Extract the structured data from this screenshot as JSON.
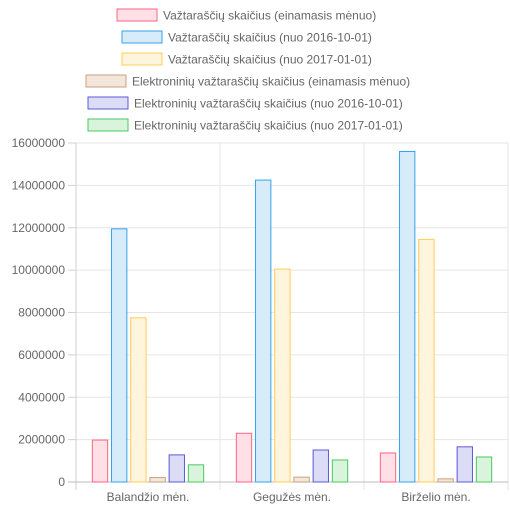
{
  "chart_data": {
    "type": "bar",
    "categories": [
      "Balandžio mėn.",
      "Gegužės mėn.",
      "Birželio mėn."
    ],
    "ylim": [
      0,
      16000000
    ],
    "yticks": [
      0,
      2000000,
      4000000,
      6000000,
      8000000,
      10000000,
      12000000,
      14000000,
      16000000
    ],
    "ytick_labels": [
      "0",
      "2000000",
      "4000000",
      "6000000",
      "8000000",
      "10000000",
      "12000000",
      "14000000",
      "16000000"
    ],
    "grid": true,
    "legend_position": "top",
    "series": [
      {
        "name": "Važtaraščių skaičius (einamasis mėnuo)",
        "values": [
          1980000,
          2300000,
          1370000
        ],
        "stroke": "#ff6384",
        "fill": "#ffe0e6"
      },
      {
        "name": "Važtaraščių skaičius (nuo 2016-10-01)",
        "values": [
          11950000,
          14250000,
          15600000
        ],
        "stroke": "#36a2eb",
        "fill": "#d7ecfb"
      },
      {
        "name": "Važtaraščių skaičius (nuo 2017-01-01)",
        "values": [
          7750000,
          10050000,
          11450000
        ],
        "stroke": "#ffce56",
        "fill": "#fff5dd"
      },
      {
        "name": "Elektroninių važtaraščių skaičius (einamasis mėnuo)",
        "values": [
          210000,
          230000,
          150000
        ],
        "stroke": "#c9a27e",
        "fill": "#f3e6da"
      },
      {
        "name": "Elektroninių važtaraščių skaičius (nuo 2016-10-01)",
        "values": [
          1280000,
          1510000,
          1660000
        ],
        "stroke": "#5b5bd6",
        "fill": "#dcdcf7"
      },
      {
        "name": "Elektroninių važtaraščių skaičius (nuo 2017-01-01)",
        "values": [
          810000,
          1040000,
          1180000
        ],
        "stroke": "#4bc85b",
        "fill": "#d9f4dc"
      }
    ]
  }
}
